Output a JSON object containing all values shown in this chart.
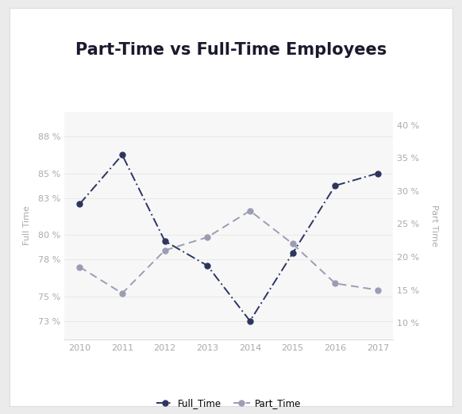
{
  "title": "Part-Time vs Full-Time Employees",
  "years": [
    2010,
    2011,
    2012,
    2013,
    2014,
    2015,
    2016,
    2017
  ],
  "full_time": [
    82.5,
    86.5,
    79.5,
    77.5,
    73.0,
    78.5,
    84.0,
    85.0
  ],
  "part_time": [
    18.5,
    14.5,
    21.0,
    23.0,
    27.0,
    22.0,
    16.0,
    15.0
  ],
  "full_time_color": "#2d3561",
  "part_time_color": "#9b9db5",
  "left_yticks": [
    73,
    75,
    78,
    80,
    83,
    85,
    88
  ],
  "right_yticks": [
    10,
    15,
    20,
    25,
    30,
    35,
    40
  ],
  "left_ylim": [
    71.5,
    90
  ],
  "right_ylim": [
    7.5,
    42
  ],
  "left_ylabel": "Full Time",
  "right_ylabel": "Part Time",
  "outer_bg": "#ebebeb",
  "card_bg": "#ffffff",
  "title_area_bg": "#ffffff",
  "plot_bg": "#f7f7f7",
  "title_fontsize": 15,
  "axis_label_fontsize": 8,
  "tick_fontsize": 8,
  "legend_fontsize": 8.5,
  "tick_color": "#aaaaaa",
  "label_color": "#aaaaaa",
  "grid_color": "#e8e8e8",
  "bottom_spine_color": "#dddddd"
}
